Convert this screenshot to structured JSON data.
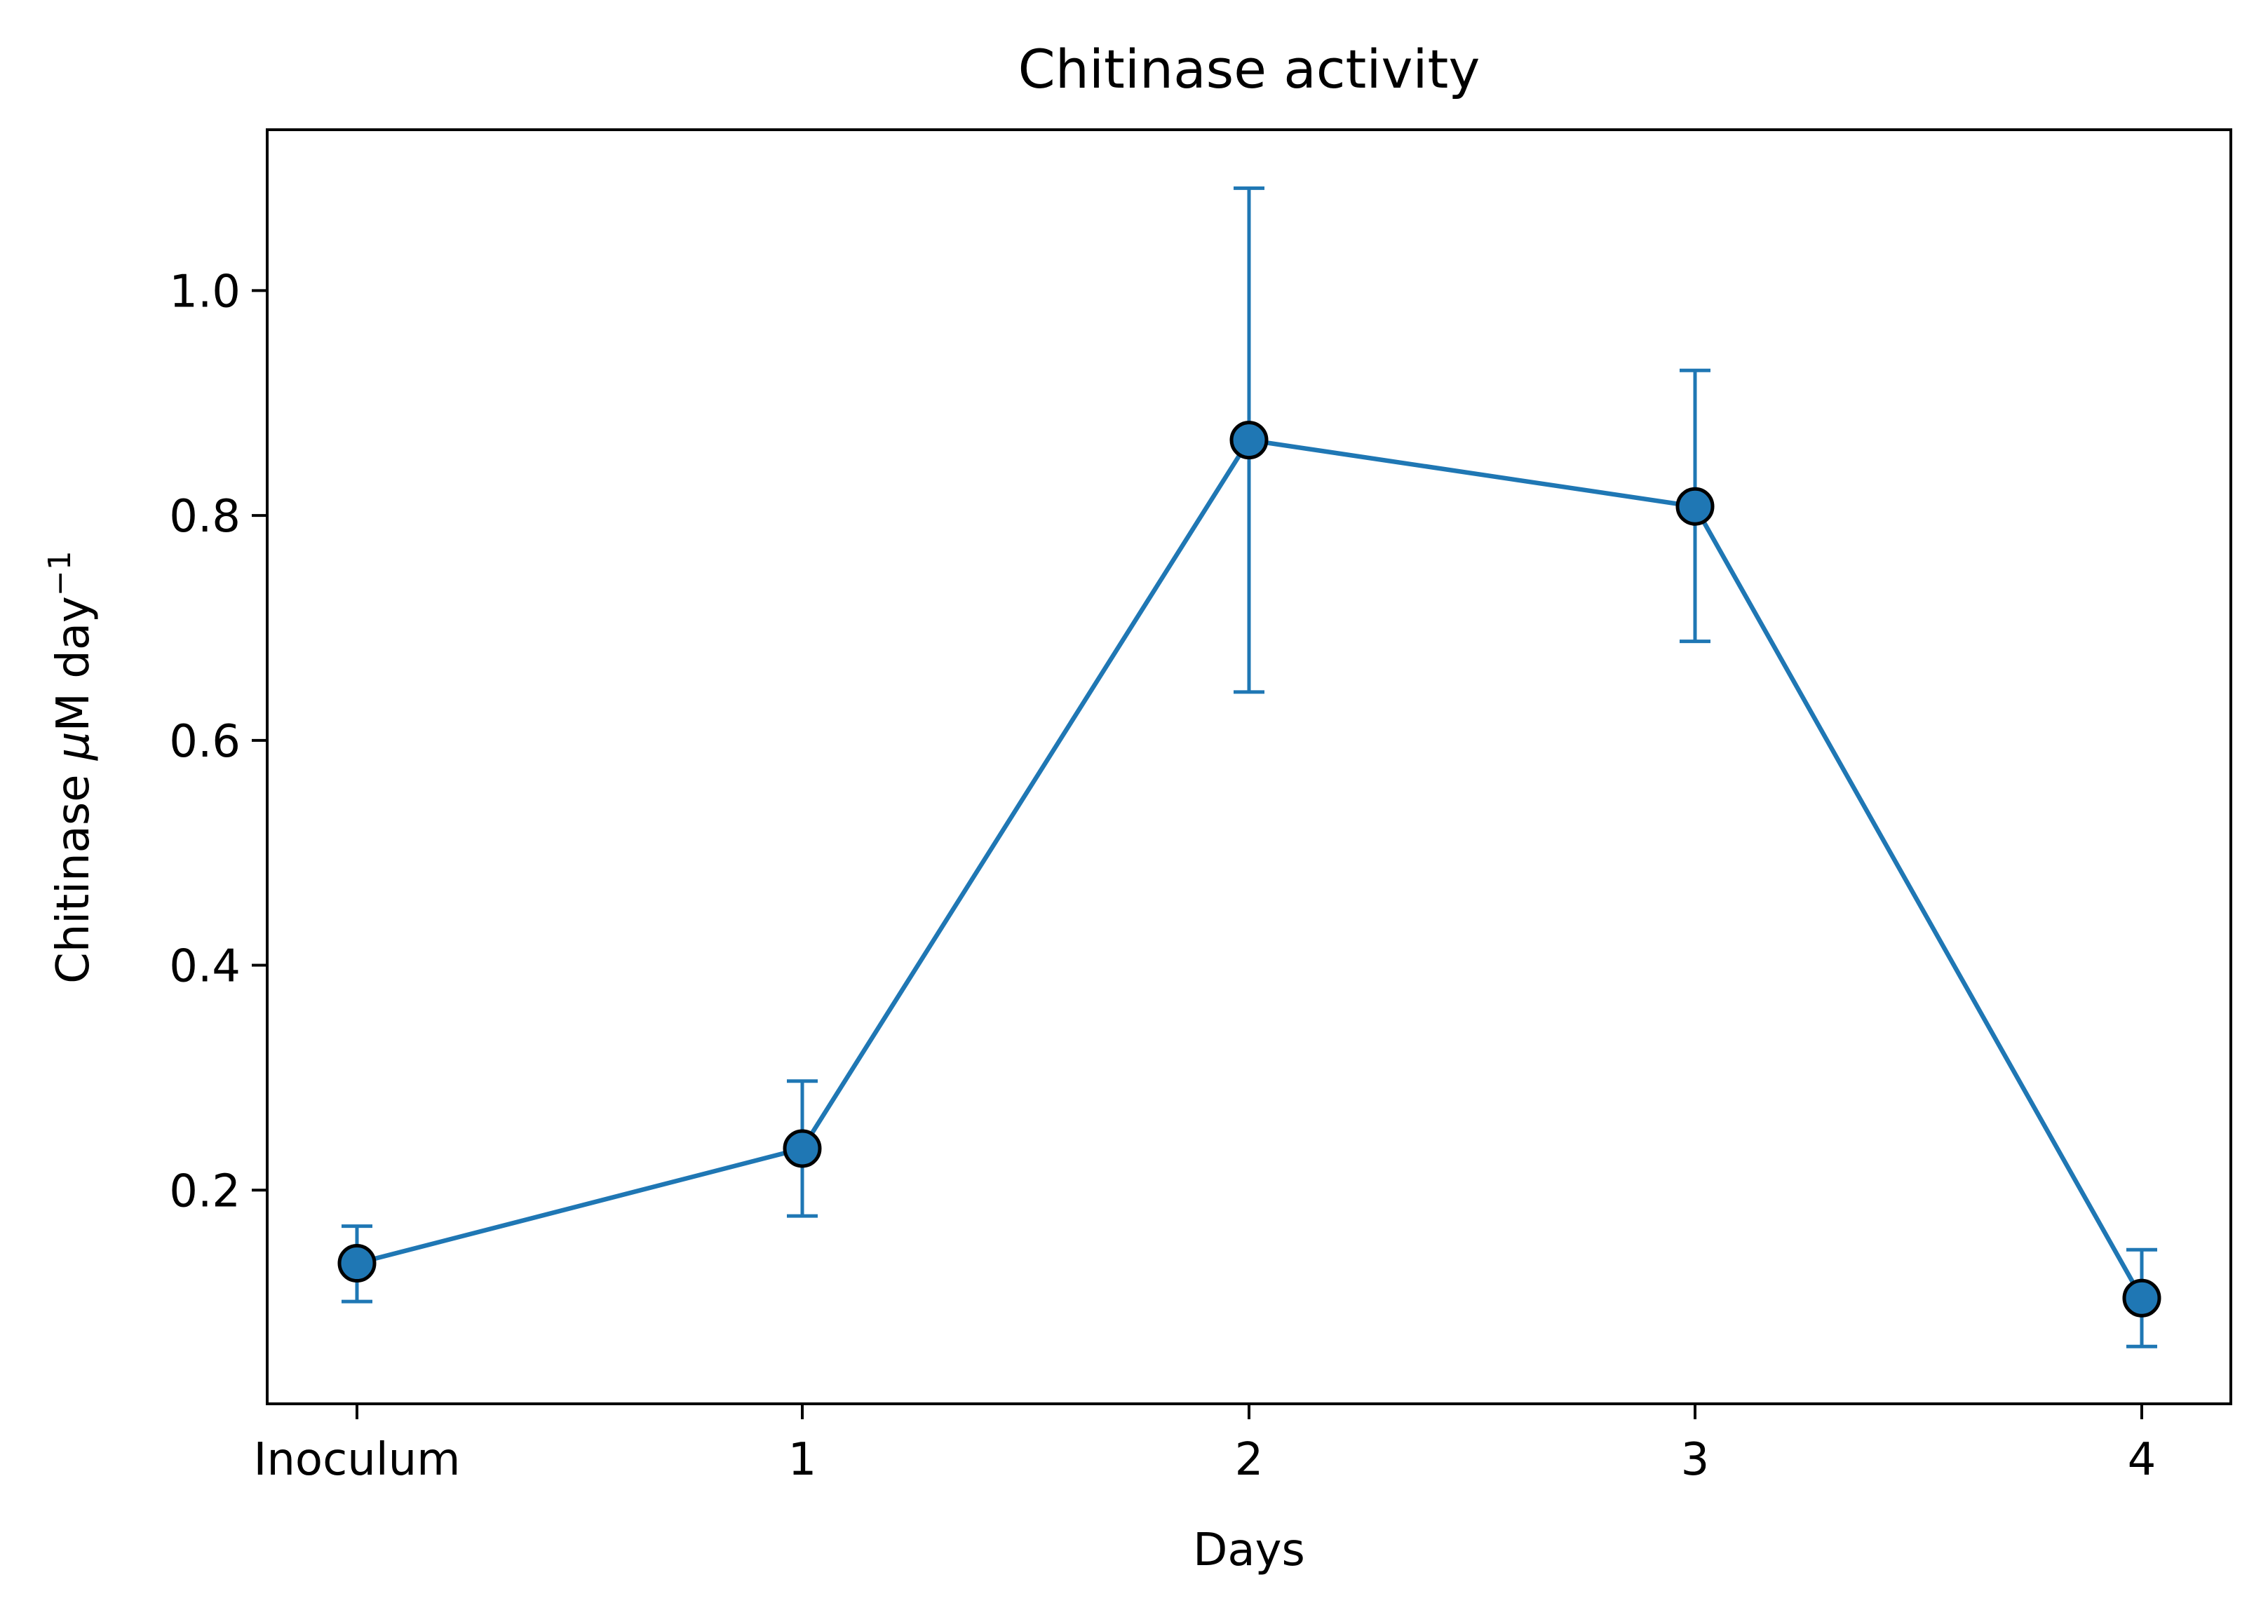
{
  "chart_data": {
    "type": "line",
    "title": "Chitinase activity",
    "xlabel": "Days",
    "ylabel_text": "Chitinase ",
    "ylabel_mu": "μ",
    "ylabel_unit": "M day",
    "ylabel_sup": "−1",
    "categories": [
      "Inoculum",
      "1",
      "2",
      "3",
      "4"
    ],
    "y_ticks": [
      "0.2",
      "0.4",
      "0.6",
      "0.8",
      "1.0"
    ],
    "y_tick_values": [
      0.2,
      0.4,
      0.6,
      0.8,
      1.0
    ],
    "ylim": [
      0.01,
      1.143
    ],
    "grid": false,
    "series": [
      {
        "values": [
          0.135,
          0.237,
          0.867,
          0.808,
          0.104
        ],
        "err_low": [
          0.101,
          0.177,
          0.643,
          0.688,
          0.061
        ],
        "err_high": [
          0.168,
          0.297,
          1.091,
          0.929,
          0.147
        ],
        "color": "#1f77b4"
      }
    ]
  }
}
